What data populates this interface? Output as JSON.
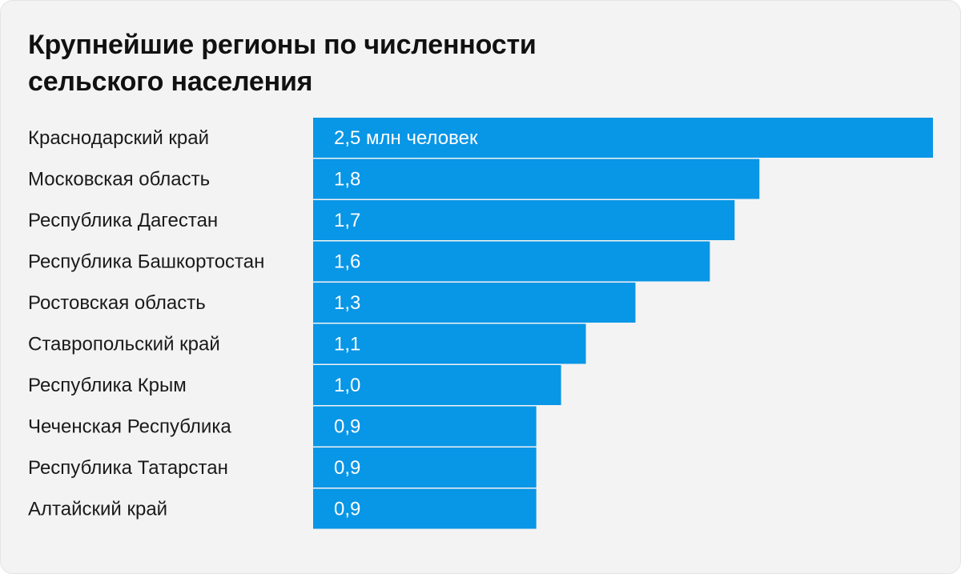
{
  "title": "Крупнейшие регионы по численности сельского населения",
  "colors": {
    "background": "#f3f3f3",
    "bar": "#0896e6",
    "text": "#111111",
    "value_text": "#ffffff"
  },
  "chart_data": {
    "type": "bar",
    "orientation": "horizontal",
    "title": "Крупнейшие регионы по численности сельского населения",
    "unit": "млн человек",
    "categories": [
      "Краснодарский край",
      "Московская область",
      "Республика Дагестан",
      "Республика Башкортостан",
      "Ростовская область",
      "Ставропольский край",
      "Республика Крым",
      "Чеченская Республика",
      "Республика Татарстан",
      "Алтайский край"
    ],
    "values": [
      2.5,
      1.8,
      1.7,
      1.6,
      1.3,
      1.1,
      1.0,
      0.9,
      0.9,
      0.9
    ],
    "value_labels": [
      "2,5 млн человек",
      "1,8",
      "1,7",
      "1,6",
      "1,3",
      "1,1",
      "1,0",
      "0,9",
      "0,9",
      "0,9"
    ],
    "xlim": [
      0,
      2.5
    ],
    "grid": false,
    "legend": "none"
  }
}
